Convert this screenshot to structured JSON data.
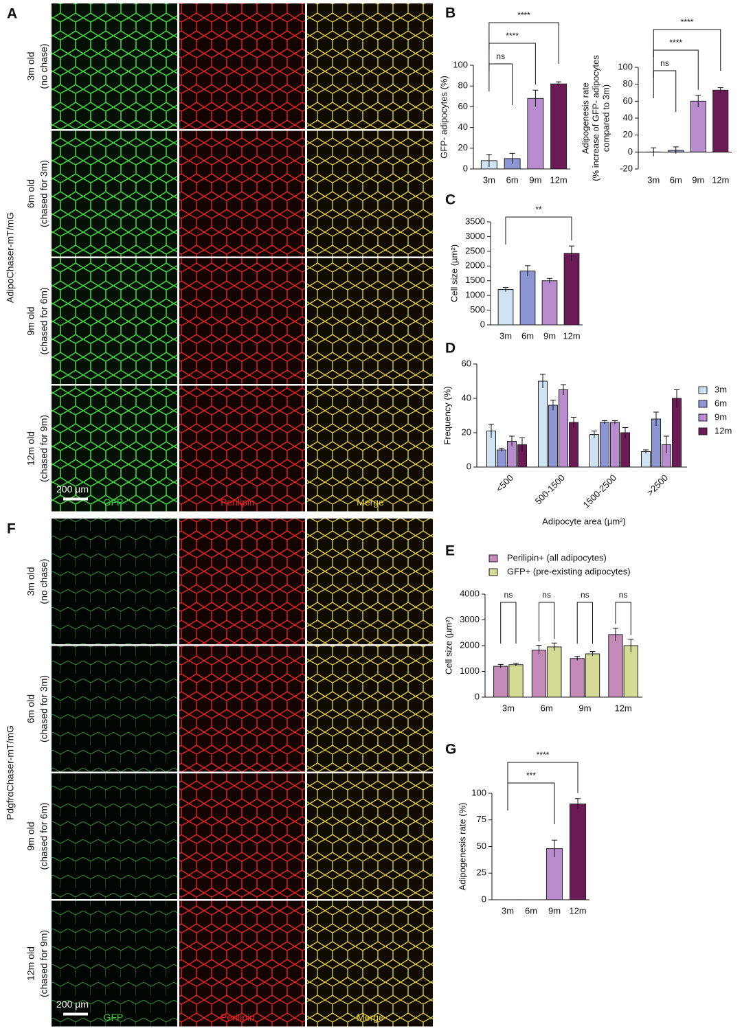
{
  "figure_panels": [
    {
      "panel": "A",
      "side_label": "AdipoChaser-mT/mG",
      "rows": [
        [
          "3m old",
          "(no chase)"
        ],
        [
          "6m old",
          "(chased for 3m)"
        ],
        [
          "9m old",
          "(chased for 6m)"
        ],
        [
          "12m old",
          "(chased for 9m)"
        ]
      ],
      "columns": [
        "GFP",
        "Perilipin",
        "Merge"
      ],
      "scale_bar": "200 µm"
    },
    {
      "panel": "F",
      "side_label": "PdgfrαChaser-mT/mG",
      "rows": [
        [
          "3m old",
          "(no chase)"
        ],
        [
          "6m old",
          "(chased for 3m)"
        ],
        [
          "9m old",
          "(chased for 6m)"
        ],
        [
          "12m old",
          "(chased for 9m)"
        ]
      ],
      "columns": [
        "GFP",
        "Perilipin",
        "Merge"
      ],
      "scale_bar": "200 µm"
    }
  ],
  "chart_data": [
    {
      "type": "bar",
      "panel": "B",
      "y_label": "GFP- adipocytes (%)",
      "categories": [
        "3m",
        "6m",
        "9m",
        "12m"
      ],
      "values": [
        8,
        10,
        68,
        82
      ],
      "errors": [
        6,
        5,
        8,
        2
      ],
      "colors": [
        "#cfe2f3",
        "#8e95d3",
        "#b98ccd",
        "#6a1b55"
      ],
      "ylim": [
        0,
        100
      ],
      "yticks": [
        0,
        20,
        40,
        60,
        80,
        100
      ],
      "annotations": [
        {
          "text": "ns",
          "between": [
            "3m",
            "6m"
          ]
        },
        {
          "text": "****",
          "between": [
            "3m",
            "9m"
          ]
        },
        {
          "text": "****",
          "between": [
            "3m",
            "12m"
          ]
        }
      ]
    },
    {
      "type": "bar",
      "y_label": [
        "Adipogenesis rate",
        "(% increase of GFP- adipocytes",
        "compared to 3m)"
      ],
      "categories": [
        "3m",
        "6m",
        "9m",
        "12m"
      ],
      "values": [
        0,
        2,
        60,
        73
      ],
      "errors": [
        5,
        4,
        7,
        3
      ],
      "colors": [
        "#cfe2f3",
        "#8e95d3",
        "#b98ccd",
        "#6a1b55"
      ],
      "ylim": [
        -20,
        100
      ],
      "yticks": [
        -20,
        0,
        20,
        40,
        60,
        80,
        100
      ],
      "annotations": [
        {
          "text": "ns",
          "between": [
            "3m",
            "6m"
          ]
        },
        {
          "text": "****",
          "between": [
            "3m",
            "9m"
          ]
        },
        {
          "text": "****",
          "between": [
            "3m",
            "12m"
          ]
        }
      ]
    },
    {
      "type": "bar",
      "panel": "C",
      "y_label": "Cell size (µm²)",
      "categories": [
        "3m",
        "6m",
        "9m",
        "12m"
      ],
      "values": [
        1200,
        1830,
        1500,
        2430
      ],
      "errors": [
        70,
        180,
        80,
        250
      ],
      "colors": [
        "#cfe2f3",
        "#8e95d3",
        "#b98ccd",
        "#6a1b55"
      ],
      "ylim": [
        0,
        3500
      ],
      "yticks": [
        0,
        500,
        1000,
        1500,
        2000,
        2500,
        3000,
        3500
      ],
      "annotations": [
        {
          "text": "**",
          "between": [
            "3m",
            "12m"
          ]
        }
      ]
    },
    {
      "type": "bar",
      "panel": "D",
      "y_label": "Frequency (%)",
      "x_label": "Adipocyte area (µm²)",
      "categories": [
        "<500",
        "500-1500",
        "1500-2500",
        ">2500"
      ],
      "series": [
        {
          "name": "3m",
          "color": "#cfe2f3",
          "values": [
            21,
            50,
            19,
            9
          ],
          "errors": [
            4,
            4,
            2,
            1
          ]
        },
        {
          "name": "6m",
          "color": "#8e95d3",
          "values": [
            10,
            36,
            26,
            28
          ],
          "errors": [
            1,
            3,
            1,
            4
          ]
        },
        {
          "name": "9m",
          "color": "#b98ccd",
          "values": [
            15,
            45,
            26,
            13
          ],
          "errors": [
            3,
            3,
            1,
            5
          ]
        },
        {
          "name": "12m",
          "color": "#6a1b55",
          "values": [
            13,
            26,
            20,
            40
          ],
          "errors": [
            4,
            3,
            3,
            5
          ]
        }
      ],
      "ylim": [
        0,
        60
      ],
      "yticks": [
        0,
        20,
        40,
        60
      ],
      "legend": "right"
    },
    {
      "type": "bar",
      "panel": "E",
      "y_label": "Cell size (µm²)",
      "categories": [
        "3m",
        "6m",
        "9m",
        "12m"
      ],
      "series": [
        {
          "name": "Perilipin+ (all adipocytes)",
          "color": "#c48bb8",
          "values": [
            1200,
            1830,
            1500,
            2430
          ],
          "errors": [
            70,
            180,
            80,
            250
          ]
        },
        {
          "name": "GFP+ (pre-existing adipocytes)",
          "color": "#d4db94",
          "values": [
            1260,
            1950,
            1680,
            2000
          ],
          "errors": [
            60,
            150,
            90,
            250
          ]
        }
      ],
      "ylim": [
        0,
        4000
      ],
      "yticks": [
        0,
        1000,
        2000,
        3000,
        4000
      ],
      "legend": "top",
      "annotations": [
        {
          "text": "ns",
          "category": "3m"
        },
        {
          "text": "ns",
          "category": "6m"
        },
        {
          "text": "ns",
          "category": "9m"
        },
        {
          "text": "ns",
          "category": "12m"
        }
      ]
    },
    {
      "type": "bar",
      "panel": "G",
      "y_label": "Adipogenesis rate (%)",
      "categories": [
        "3m",
        "6m",
        "9m",
        "12m"
      ],
      "values": [
        0,
        0,
        48,
        90
      ],
      "errors": [
        0,
        0,
        8,
        5
      ],
      "colors": [
        "#cfe2f3",
        "#8e95d3",
        "#b98ccd",
        "#6a1b55"
      ],
      "ylim": [
        0,
        100
      ],
      "yticks": [
        0,
        25,
        50,
        75,
        100
      ],
      "annotations": [
        {
          "text": "***",
          "between": [
            "3m",
            "9m"
          ]
        },
        {
          "text": "****",
          "between": [
            "3m",
            "12m"
          ]
        }
      ]
    }
  ]
}
